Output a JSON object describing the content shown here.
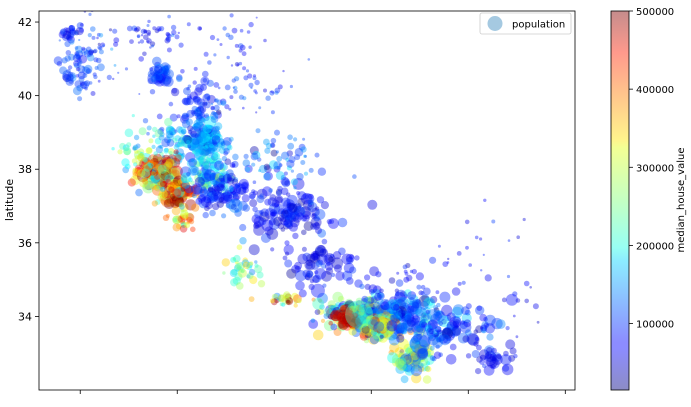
{
  "chart_data": {
    "type": "scatter",
    "title": "",
    "xlabel": "",
    "ylabel": "latitude",
    "xlim": [
      -124.85,
      -113.8
    ],
    "ylim": [
      32.0,
      42.3
    ],
    "x_ticks": [
      -124,
      -122,
      -120,
      -118,
      -116,
      -114
    ],
    "y_ticks": [
      34,
      36,
      38,
      40,
      42
    ],
    "y_tick_labels": [
      "34",
      "36",
      "38",
      "40",
      "42"
    ],
    "grid": false,
    "legend": {
      "position": "top-right",
      "entries": [
        "population"
      ],
      "marker_color": "#1f77b4"
    },
    "colorbar": {
      "label": "median_house_value",
      "colormap": "jet",
      "range": [
        14999,
        500000
      ],
      "ticks": [
        100000,
        200000,
        300000,
        400000,
        500000
      ],
      "tick_labels": [
        "100000",
        "200000",
        "300000",
        "400000",
        "500000"
      ]
    },
    "size_encoding": "population",
    "color_encoding": "median_house_value",
    "alpha": 0.4,
    "clusters": [
      {
        "lon": -124.15,
        "lat": 41.75,
        "sx": 0.12,
        "sy": 0.12,
        "n": 25,
        "v": 85000,
        "vs": 15000,
        "s": 3
      },
      {
        "lon": -124.05,
        "lat": 40.75,
        "sx": 0.18,
        "sy": 0.3,
        "n": 60,
        "v": 100000,
        "vs": 20000,
        "s": 3
      },
      {
        "lon": -123.6,
        "lat": 41.3,
        "sx": 0.4,
        "sy": 0.6,
        "n": 45,
        "v": 95000,
        "vs": 25000,
        "s": 2
      },
      {
        "lon": -122.5,
        "lat": 41.6,
        "sx": 0.35,
        "sy": 0.25,
        "n": 45,
        "v": 80000,
        "vs": 15000,
        "s": 2
      },
      {
        "lon": -121.0,
        "lat": 41.4,
        "sx": 0.45,
        "sy": 0.4,
        "n": 30,
        "v": 80000,
        "vs": 15000,
        "s": 2
      },
      {
        "lon": -122.35,
        "lat": 40.55,
        "sx": 0.12,
        "sy": 0.15,
        "n": 45,
        "v": 100000,
        "vs": 15000,
        "s": 4
      },
      {
        "lon": -121.6,
        "lat": 39.75,
        "sx": 0.3,
        "sy": 0.35,
        "n": 80,
        "v": 95000,
        "vs": 20000,
        "s": 3
      },
      {
        "lon": -120.5,
        "lat": 40.25,
        "sx": 0.5,
        "sy": 0.5,
        "n": 45,
        "v": 95000,
        "vs": 20000,
        "s": 2
      },
      {
        "lon": -121.4,
        "lat": 38.75,
        "sx": 0.25,
        "sy": 0.25,
        "n": 140,
        "v": 150000,
        "vs": 40000,
        "s": 4
      },
      {
        "lon": -122.1,
        "lat": 38.7,
        "sx": 0.35,
        "sy": 0.35,
        "n": 70,
        "v": 160000,
        "vs": 50000,
        "s": 3
      },
      {
        "lon": -122.35,
        "lat": 37.9,
        "sx": 0.2,
        "sy": 0.25,
        "n": 160,
        "v": 330000,
        "vs": 120000,
        "s": 4
      },
      {
        "lon": -122.0,
        "lat": 37.35,
        "sx": 0.2,
        "sy": 0.18,
        "n": 110,
        "v": 380000,
        "vs": 90000,
        "s": 4
      },
      {
        "lon": -121.4,
        "lat": 37.8,
        "sx": 0.3,
        "sy": 0.3,
        "n": 80,
        "v": 160000,
        "vs": 60000,
        "s": 4
      },
      {
        "lon": -122.8,
        "lat": 38.4,
        "sx": 0.2,
        "sy": 0.3,
        "n": 40,
        "v": 230000,
        "vs": 60000,
        "s": 3
      },
      {
        "lon": -121.85,
        "lat": 36.65,
        "sx": 0.15,
        "sy": 0.15,
        "n": 30,
        "v": 330000,
        "vs": 100000,
        "s": 3
      },
      {
        "lon": -121.0,
        "lat": 37.4,
        "sx": 0.35,
        "sy": 0.35,
        "n": 80,
        "v": 85000,
        "vs": 20000,
        "s": 4
      },
      {
        "lon": -119.7,
        "lat": 36.75,
        "sx": 0.45,
        "sy": 0.35,
        "n": 130,
        "v": 75000,
        "vs": 20000,
        "s": 4
      },
      {
        "lon": -120.0,
        "lat": 38.2,
        "sx": 0.5,
        "sy": 0.4,
        "n": 70,
        "v": 120000,
        "vs": 40000,
        "s": 3
      },
      {
        "lon": -119.1,
        "lat": 35.4,
        "sx": 0.35,
        "sy": 0.3,
        "n": 70,
        "v": 75000,
        "vs": 20000,
        "s": 4
      },
      {
        "lon": -120.6,
        "lat": 35.3,
        "sx": 0.2,
        "sy": 0.25,
        "n": 35,
        "v": 230000,
        "vs": 60000,
        "s": 3
      },
      {
        "lon": -119.7,
        "lat": 34.45,
        "sx": 0.25,
        "sy": 0.08,
        "n": 30,
        "v": 360000,
        "vs": 100000,
        "s": 3
      },
      {
        "lon": -118.3,
        "lat": 34.05,
        "sx": 0.35,
        "sy": 0.2,
        "n": 220,
        "v": 240000,
        "vs": 110000,
        "s": 4
      },
      {
        "lon": -118.5,
        "lat": 33.95,
        "sx": 0.12,
        "sy": 0.1,
        "n": 45,
        "v": 460000,
        "vs": 40000,
        "s": 4
      },
      {
        "lon": -117.35,
        "lat": 34.05,
        "sx": 0.4,
        "sy": 0.25,
        "n": 140,
        "v": 120000,
        "vs": 40000,
        "s": 4
      },
      {
        "lon": -117.85,
        "lat": 33.7,
        "sx": 0.2,
        "sy": 0.15,
        "n": 110,
        "v": 280000,
        "vs": 90000,
        "s": 4
      },
      {
        "lon": -117.15,
        "lat": 32.85,
        "sx": 0.18,
        "sy": 0.22,
        "n": 100,
        "v": 230000,
        "vs": 80000,
        "s": 4
      },
      {
        "lon": -116.8,
        "lat": 33.75,
        "sx": 0.45,
        "sy": 0.35,
        "n": 80,
        "v": 110000,
        "vs": 30000,
        "s": 4
      },
      {
        "lon": -116.1,
        "lat": 33.65,
        "sx": 0.4,
        "sy": 0.3,
        "n": 50,
        "v": 90000,
        "vs": 25000,
        "s": 4
      },
      {
        "lon": -115.5,
        "lat": 32.9,
        "sx": 0.25,
        "sy": 0.2,
        "n": 30,
        "v": 75000,
        "vs": 15000,
        "s": 4
      },
      {
        "lon": -117.2,
        "lat": 34.8,
        "sx": 0.6,
        "sy": 0.3,
        "n": 40,
        "v": 80000,
        "vs": 20000,
        "s": 3
      },
      {
        "lon": -116.5,
        "lat": 35.5,
        "sx": 1.0,
        "sy": 0.7,
        "n": 20,
        "v": 80000,
        "vs": 15000,
        "s": 2
      },
      {
        "lon": -115.0,
        "lat": 34.2,
        "sx": 0.6,
        "sy": 0.5,
        "n": 15,
        "v": 70000,
        "vs": 15000,
        "s": 2
      }
    ],
    "highlight_points": [
      {
        "lon": -118.25,
        "lat": 34.05,
        "v": 230000,
        "s": 14
      },
      {
        "lon": -119.1,
        "lat": 34.7,
        "v": 80000,
        "s": 7
      },
      {
        "lon": -117.0,
        "lat": 33.25,
        "v": 110000,
        "s": 10
      },
      {
        "lon": -115.1,
        "lat": 34.45,
        "v": 80000,
        "s": 6
      },
      {
        "lon": -120.8,
        "lat": 37.0,
        "v": 140000,
        "s": 7
      }
    ]
  }
}
